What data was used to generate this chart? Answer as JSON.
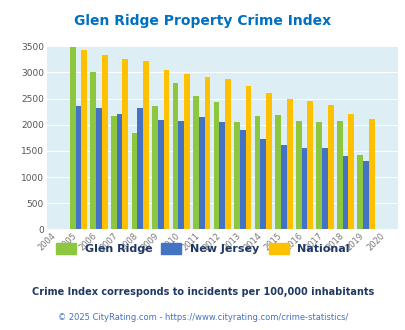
{
  "title": "Glen Ridge Property Crime Index",
  "years": [
    2004,
    2005,
    2006,
    2007,
    2008,
    2009,
    2010,
    2011,
    2012,
    2013,
    2014,
    2015,
    2016,
    2017,
    2018,
    2019,
    2020
  ],
  "glen_ridge": [
    0,
    3480,
    3000,
    2170,
    1850,
    2350,
    2800,
    2540,
    2440,
    2050,
    2170,
    2190,
    2070,
    2050,
    2070,
    1430,
    0
  ],
  "new_jersey": [
    0,
    2360,
    2310,
    2200,
    2320,
    2090,
    2070,
    2150,
    2060,
    1890,
    1720,
    1620,
    1560,
    1560,
    1400,
    1310,
    0
  ],
  "national": [
    0,
    3420,
    3340,
    3260,
    3210,
    3050,
    2960,
    2920,
    2870,
    2740,
    2600,
    2500,
    2460,
    2380,
    2210,
    2110,
    0
  ],
  "glen_ridge_color": "#8dc63f",
  "new_jersey_color": "#4472c4",
  "national_color": "#ffc000",
  "background_color": "#ddeef5",
  "title_color": "#0070c0",
  "ylim": [
    0,
    3500
  ],
  "yticks": [
    0,
    500,
    1000,
    1500,
    2000,
    2500,
    3000,
    3500
  ],
  "legend_labels": [
    "Glen Ridge",
    "New Jersey",
    "National"
  ],
  "footnote1": "Crime Index corresponds to incidents per 100,000 inhabitants",
  "footnote2": "© 2025 CityRating.com - https://www.cityrating.com/crime-statistics/",
  "footnote1_color": "#1f3864",
  "footnote2_color": "#4472c4",
  "bar_width": 0.28
}
